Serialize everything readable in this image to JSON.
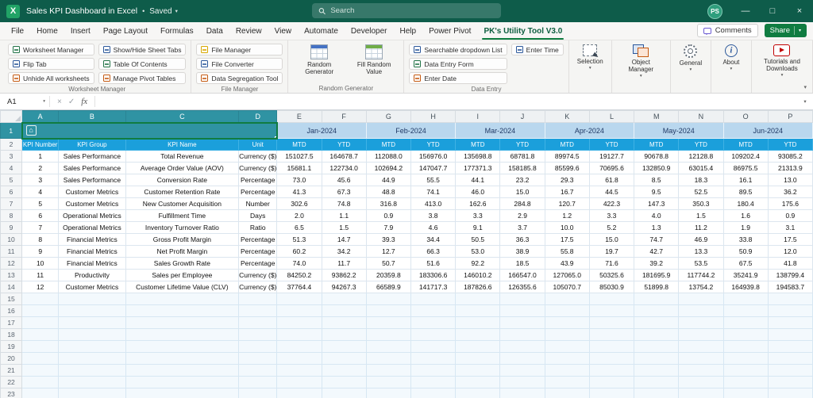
{
  "colors": {
    "titlebar_green": "#0e5c4a",
    "accent_green": "#107c41",
    "selection_teal": "#2f93a3",
    "month_header_blue": "#b9d7ee",
    "table_header_blue": "#1b9fdb"
  },
  "titlebar": {
    "app_icon": "X",
    "title": "Sales KPI Dashboard in Excel",
    "saved": "Saved",
    "search_placeholder": "Search",
    "avatar": "PS",
    "window_controls": {
      "minimize": "—",
      "maximize": "□",
      "close": "×"
    }
  },
  "menu": {
    "tabs": [
      "File",
      "Home",
      "Insert",
      "Page Layout",
      "Formulas",
      "Data",
      "Review",
      "View",
      "Automate",
      "Developer",
      "Help",
      "Power Pivot",
      "PK's Utility Tool V3.0"
    ],
    "active_tab": "PK's Utility Tool V3.0",
    "comments_label": "Comments",
    "share_label": "Share"
  },
  "ribbon": {
    "groups": [
      {
        "label": "Worksheet Manager",
        "type": "small",
        "columns": [
          [
            {
              "label": "Worksheet Manager",
              "icon": "worksheet-manager-icon",
              "color": "#217346"
            },
            {
              "label": "Flip Tab",
              "icon": "flip-tab-icon",
              "color": "#2b579a"
            },
            {
              "label": "Unhide All worksheets",
              "icon": "unhide-all-worksheets-icon",
              "color": "#c55a11"
            }
          ],
          [
            {
              "label": "Show/Hide Sheet Tabs",
              "icon": "show-hide-sheet-tabs-icon",
              "color": "#2b579a"
            },
            {
              "label": "Table Of Contents",
              "icon": "table-of-contents-icon",
              "color": "#217346"
            },
            {
              "label": "Manage Pivot Tables",
              "icon": "manage-pivot-tables-icon",
              "color": "#c55a11"
            }
          ]
        ]
      },
      {
        "label": "File Manager",
        "type": "small",
        "columns": [
          [
            {
              "label": "File Manager",
              "icon": "file-manager-icon",
              "color": "#d8a800"
            },
            {
              "label": "File Converter",
              "icon": "file-converter-icon",
              "color": "#2b579a"
            },
            {
              "label": "Data Segregation Tool",
              "icon": "data-segregation-tool-icon",
              "color": "#c55a11"
            }
          ]
        ]
      },
      {
        "label": "Random Generator",
        "type": "big",
        "buttons": [
          {
            "label": "Random Generator",
            "icon": "random-generator-icon",
            "dropdown": false
          },
          {
            "label": "Fill Random Value",
            "icon": "fill-random-value-icon",
            "dropdown": false
          }
        ]
      },
      {
        "label": "Data Entry",
        "type": "small",
        "columns": [
          [
            {
              "label": "Searchable dropdown List",
              "icon": "searchable-dropdown-list-icon",
              "color": "#2b579a"
            },
            {
              "label": "Data Entry Form",
              "icon": "data-entry-form-icon",
              "color": "#217346"
            },
            {
              "label": "Enter Date",
              "icon": "enter-date-icon",
              "color": "#c55a11"
            }
          ],
          [
            {
              "label": "Enter Time",
              "icon": "enter-time-icon",
              "color": "#2b579a"
            }
          ]
        ]
      },
      {
        "label": "",
        "type": "big",
        "buttons": [
          {
            "label": "Selection",
            "icon": "selection-icon",
            "dropdown": true
          }
        ]
      },
      {
        "label": "",
        "type": "big",
        "buttons": [
          {
            "label": "Object Manager",
            "icon": "object-manager-icon",
            "dropdown": true
          }
        ]
      },
      {
        "label": "",
        "type": "big",
        "buttons": [
          {
            "label": "General",
            "icon": "general-icon",
            "dropdown": true
          }
        ]
      },
      {
        "label": "",
        "type": "big",
        "buttons": [
          {
            "label": "About",
            "icon": "about-icon",
            "dropdown": true
          }
        ]
      },
      {
        "label": "",
        "type": "big",
        "buttons": [
          {
            "label": "Tutorials and Downloads",
            "icon": "tutorials-downloads-icon",
            "dropdown": true
          }
        ]
      }
    ]
  },
  "formula_bar": {
    "name_box": "A1",
    "cancel": "×",
    "enter": "✓",
    "fx": "fx"
  },
  "sheet": {
    "column_letters": [
      "A",
      "B",
      "C",
      "D",
      "E",
      "F",
      "G",
      "H",
      "I",
      "J",
      "K",
      "L",
      "M",
      "N",
      "O",
      "P"
    ],
    "selected_range_cols": [
      "A",
      "B",
      "C",
      "D"
    ],
    "selected_cell": "A1",
    "total_rows": 23,
    "months": [
      "Jan-2024",
      "Feb-2024",
      "Mar-2024",
      "Apr-2024",
      "May-2024",
      "Jun-2024"
    ],
    "sub_headers": [
      "MTD",
      "YTD"
    ],
    "left_headers": [
      "KPI Number",
      "KPI Group",
      "KPI Name",
      "Unit"
    ],
    "kpi_rows": [
      {
        "num": 1,
        "group": "Sales Performance",
        "name": "Total Revenue",
        "unit": "Currency ($)",
        "values": [
          "151027.5",
          "164678.7",
          "112088.0",
          "156976.0",
          "135698.8",
          "68781.8",
          "89974.5",
          "19127.7",
          "90678.8",
          "12128.8",
          "109202.4",
          "93085.2"
        ]
      },
      {
        "num": 2,
        "group": "Sales Performance",
        "name": "Average Order Value (AOV)",
        "unit": "Currency ($)",
        "values": [
          "15681.1",
          "122734.0",
          "102694.2",
          "147047.7",
          "177371.3",
          "158185.8",
          "85599.6",
          "70695.6",
          "132850.9",
          "63015.4",
          "86975.5",
          "21313.9"
        ]
      },
      {
        "num": 3,
        "group": "Sales Performance",
        "name": "Conversion Rate",
        "unit": "Percentage",
        "values": [
          "73.0",
          "45.6",
          "44.9",
          "55.5",
          "44.1",
          "23.2",
          "29.3",
          "61.8",
          "8.5",
          "18.3",
          "16.1",
          "13.0"
        ]
      },
      {
        "num": 4,
        "group": "Customer Metrics",
        "name": "Customer Retention Rate",
        "unit": "Percentage",
        "values": [
          "41.3",
          "67.3",
          "48.8",
          "74.1",
          "46.0",
          "15.0",
          "16.7",
          "44.5",
          "9.5",
          "52.5",
          "89.5",
          "36.2"
        ]
      },
      {
        "num": 5,
        "group": "Customer Metrics",
        "name": "New Customer Acquisition",
        "unit": "Number",
        "values": [
          "302.6",
          "74.8",
          "316.8",
          "413.0",
          "162.6",
          "284.8",
          "120.7",
          "422.3",
          "147.3",
          "350.3",
          "180.4",
          "175.6"
        ]
      },
      {
        "num": 6,
        "group": "Operational Metrics",
        "name": "Fulfillment Time",
        "unit": "Days",
        "values": [
          "2.0",
          "1.1",
          "0.9",
          "3.8",
          "3.3",
          "2.9",
          "1.2",
          "3.3",
          "4.0",
          "1.5",
          "1.6",
          "0.9"
        ]
      },
      {
        "num": 7,
        "group": "Operational Metrics",
        "name": "Inventory Turnover Ratio",
        "unit": "Ratio",
        "values": [
          "6.5",
          "1.5",
          "7.9",
          "4.6",
          "9.1",
          "3.7",
          "10.0",
          "5.2",
          "1.3",
          "11.2",
          "1.9",
          "3.1"
        ]
      },
      {
        "num": 8,
        "group": "Financial Metrics",
        "name": "Gross Profit Margin",
        "unit": "Percentage",
        "values": [
          "51.3",
          "14.7",
          "39.3",
          "34.4",
          "50.5",
          "36.3",
          "17.5",
          "15.0",
          "74.7",
          "46.9",
          "33.8",
          "17.5"
        ]
      },
      {
        "num": 9,
        "group": "Financial Metrics",
        "name": "Net Profit Margin",
        "unit": "Percentage",
        "values": [
          "60.2",
          "34.2",
          "12.7",
          "66.3",
          "53.0",
          "38.9",
          "55.8",
          "19.7",
          "42.7",
          "13.3",
          "50.9",
          "12.0"
        ]
      },
      {
        "num": 10,
        "group": "Financial Metrics",
        "name": "Sales Growth Rate",
        "unit": "Percentage",
        "values": [
          "74.0",
          "11.7",
          "50.7",
          "51.6",
          "92.2",
          "18.5",
          "43.9",
          "71.6",
          "39.2",
          "53.5",
          "67.5",
          "41.8"
        ]
      },
      {
        "num": 11,
        "group": "Productivity",
        "name": "Sales per Employee",
        "unit": "Currency ($)",
        "values": [
          "84250.2",
          "93862.2",
          "20359.8",
          "183306.6",
          "146010.2",
          "166547.0",
          "127065.0",
          "50325.6",
          "181695.9",
          "117744.2",
          "35241.9",
          "138799.4"
        ]
      },
      {
        "num": 12,
        "group": "Customer Metrics",
        "name": "Customer Lifetime Value (CLV)",
        "unit": "Currency ($)",
        "values": [
          "37764.4",
          "94267.3",
          "66589.9",
          "141717.3",
          "187826.6",
          "126355.6",
          "105070.7",
          "85030.9",
          "51899.8",
          "13754.2",
          "164939.8",
          "194583.7"
        ]
      }
    ]
  }
}
